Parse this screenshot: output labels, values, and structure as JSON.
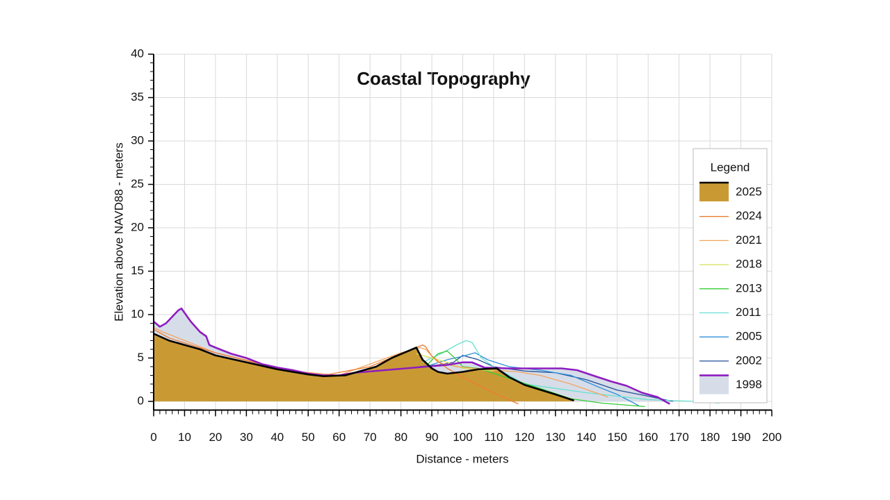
{
  "chart_data": {
    "type": "line",
    "title": "Coastal Topography",
    "x_label": "Distance - meters",
    "y_label": "Elevation above NAVD88 - meters",
    "legend_title": "Legend",
    "legend_position": "right",
    "grid": true,
    "xlim": [
      0,
      200
    ],
    "xticks": [
      0,
      10,
      20,
      30,
      40,
      50,
      60,
      70,
      80,
      90,
      100,
      110,
      120,
      130,
      140,
      150,
      160,
      170,
      180,
      190,
      200
    ],
    "ylim": [
      -1,
      40
    ],
    "yticks": [
      0,
      5,
      10,
      15,
      20,
      25,
      30,
      35,
      40
    ],
    "series": [
      {
        "name": "2025",
        "color": "#000000",
        "fill": "#c99a34",
        "x": [
          0,
          5,
          10,
          15,
          20,
          30,
          40,
          50,
          55,
          62,
          67,
          72,
          77,
          85,
          87,
          90,
          92,
          95,
          100,
          105,
          111,
          115,
          120,
          130,
          136
        ],
        "values": [
          7.8,
          7,
          6.5,
          6,
          5.3,
          4.5,
          3.7,
          3.1,
          2.9,
          3,
          3.5,
          4,
          5,
          6.2,
          4.8,
          3.8,
          3.4,
          3.2,
          3.4,
          3.7,
          3.8,
          2.8,
          1.9,
          0.8,
          0.1
        ]
      },
      {
        "name": "2024",
        "color": "#ed7d31",
        "x": [
          0,
          5,
          20,
          40,
          55,
          70,
          80,
          87,
          88,
          90,
          95,
          100,
          110,
          118
        ],
        "values": [
          8.3,
          7.3,
          5.6,
          3.8,
          3,
          4,
          5.5,
          6.5,
          6.3,
          5.2,
          3.8,
          2.8,
          1,
          -0.3
        ]
      },
      {
        "name": "2021",
        "color": "#f4a460",
        "x": [
          0,
          3,
          20,
          45,
          60,
          80,
          86,
          88,
          92,
          98,
          110,
          118,
          125,
          135,
          147
        ],
        "values": [
          8.5,
          8,
          5.6,
          3.5,
          3,
          5.6,
          6.2,
          6,
          4.5,
          4,
          3.6,
          3.4,
          3,
          2,
          0.5
        ]
      },
      {
        "name": "2018",
        "color": "#d4e157",
        "x": [
          85,
          90,
          95,
          100,
          110
        ],
        "values": [
          5.5,
          5,
          4.5,
          3.8,
          3.5
        ]
      },
      {
        "name": "2013",
        "color": "#33cc33",
        "x": [
          88,
          92,
          95,
          98,
          100,
          105,
          125,
          135,
          145,
          159
        ],
        "values": [
          4,
          5.5,
          5.8,
          4.8,
          4,
          3.8,
          1.5,
          0.3,
          -0.2,
          -0.6
        ]
      },
      {
        "name": "2011",
        "color": "#66e0d0",
        "x": [
          87,
          93,
          98,
          101,
          103,
          106,
          110,
          120,
          140,
          160,
          175,
          183
        ],
        "values": [
          4.5,
          5.5,
          6.5,
          7,
          6.8,
          5,
          4,
          2,
          1,
          0.2,
          0,
          -0.2
        ]
      },
      {
        "name": "2005",
        "color": "#2f8fd8",
        "x": [
          88,
          95,
          100,
          104,
          108,
          115,
          125,
          135,
          145,
          150,
          157
        ],
        "values": [
          4,
          4.8,
          5.2,
          5.6,
          4.8,
          4,
          3.6,
          3,
          1.5,
          0.8,
          -0.5
        ]
      },
      {
        "name": "2002",
        "color": "#1f4e99",
        "x": [
          86,
          92,
          97,
          100,
          105,
          110,
          120,
          130,
          140,
          150,
          160,
          168
        ],
        "values": [
          4,
          4.2,
          4.5,
          5.3,
          4.8,
          4,
          3.5,
          3.3,
          2.5,
          1.3,
          0.6,
          0
        ]
      },
      {
        "name": "1998",
        "color": "#8e1cc0",
        "fill": "#d6dde8",
        "x": [
          0,
          2,
          4,
          8,
          9,
          12,
          15,
          17,
          18,
          20,
          25,
          30,
          35,
          40,
          45,
          50,
          55,
          60,
          65,
          88,
          95,
          100,
          103,
          107,
          115,
          125,
          132,
          137,
          142,
          148,
          153,
          158,
          163,
          167
        ],
        "values": [
          9.2,
          8.6,
          9,
          10.5,
          10.7,
          9.2,
          8,
          7.5,
          6.5,
          6.2,
          5.5,
          5,
          4.3,
          3.9,
          3.6,
          3.2,
          3,
          3,
          3.3,
          4,
          4.2,
          4.5,
          4.5,
          3.9,
          3.8,
          3.8,
          3.8,
          3.6,
          3,
          2.3,
          1.8,
          1,
          0.5,
          -0.3
        ]
      }
    ]
  }
}
